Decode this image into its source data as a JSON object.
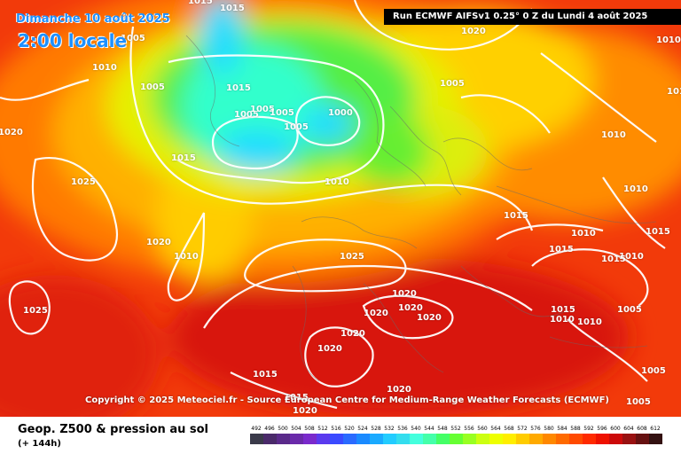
{
  "header": {
    "date": "Dimanche 10 août 2025",
    "time": "2:00 locale",
    "run": "Run ECMWF AIFSv1 0.25° 0 Z du Lundi 4 août 2025"
  },
  "copyright": "Copyright © 2025 Meteociel.fr - Source European Centre for Medium-Range Weather Forecasts (ECMWF)",
  "footer": {
    "title": "Geop. Z500 & pression au sol",
    "subtitle": "(+ 144h)"
  },
  "color_scale": {
    "values": [
      "492",
      "496",
      "500",
      "504",
      "508",
      "512",
      "516",
      "520",
      "524",
      "528",
      "532",
      "536",
      "540",
      "544",
      "548",
      "552",
      "556",
      "560",
      "564",
      "568",
      "572",
      "576",
      "580",
      "584",
      "588",
      "592",
      "596",
      "600",
      "604",
      "608",
      "612"
    ],
    "colors": [
      "#3a3a4a",
      "#4a2a6a",
      "#5a2a8a",
      "#6a2aaa",
      "#7a2acc",
      "#5a3aee",
      "#3a4aff",
      "#2a6aff",
      "#1a8aff",
      "#1aaaff",
      "#22ccff",
      "#33ddee",
      "#44ffdd",
      "#44ffaa",
      "#44ff66",
      "#66ff33",
      "#99ff22",
      "#ccff11",
      "#eeff00",
      "#ffee00",
      "#ffcc00",
      "#ffaa00",
      "#ff8800",
      "#ff6a00",
      "#ff4a00",
      "#ff2a00",
      "#ee1100",
      "#cc0a0a",
      "#991111",
      "#661111",
      "#331111"
    ]
  },
  "isobar_labels": [
    {
      "text": "1015"
    },
    {
      "text": "1015"
    },
    {
      "text": "1005"
    },
    {
      "text": "1010"
    },
    {
      "text": "1005"
    },
    {
      "text": "1015"
    },
    {
      "text": "1005"
    },
    {
      "text": "1005"
    },
    {
      "text": "1005"
    },
    {
      "text": "1000"
    },
    {
      "text": "1005"
    },
    {
      "text": "1015"
    },
    {
      "text": "1010"
    },
    {
      "text": "1025"
    },
    {
      "text": "1020"
    },
    {
      "text": "1020"
    },
    {
      "text": "1010"
    },
    {
      "text": "1025"
    },
    {
      "text": "1025"
    },
    {
      "text": "1020"
    },
    {
      "text": "1020"
    },
    {
      "text": "1020"
    },
    {
      "text": "1020"
    },
    {
      "text": "1020"
    },
    {
      "text": "1015"
    },
    {
      "text": "1015"
    },
    {
      "text": "1020"
    },
    {
      "text": "1020"
    },
    {
      "text": "1020"
    },
    {
      "text": "1005"
    },
    {
      "text": "1020"
    },
    {
      "text": "1010"
    },
    {
      "text": "1010"
    },
    {
      "text": "1010"
    },
    {
      "text": "1015"
    },
    {
      "text": "1015"
    },
    {
      "text": "1015"
    },
    {
      "text": "1010"
    },
    {
      "text": "1015"
    },
    {
      "text": "1015"
    },
    {
      "text": "1010"
    },
    {
      "text": "1005"
    },
    {
      "text": "1005"
    },
    {
      "text": "1005"
    },
    {
      "text": "1010"
    },
    {
      "text": "1010"
    },
    {
      "text": "1010"
    }
  ]
}
